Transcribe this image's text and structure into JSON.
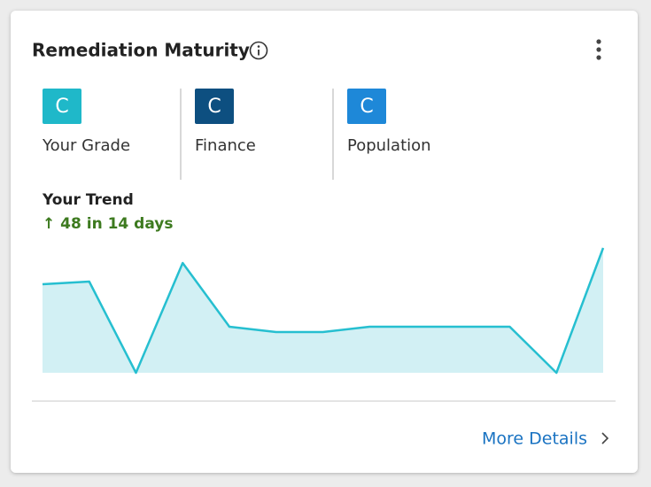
{
  "header": {
    "title": "Remediation Maturity"
  },
  "grades": [
    {
      "letter": "C",
      "label": "Your Grade",
      "color": "#1fb8c9"
    },
    {
      "letter": "C",
      "label": "Finance",
      "color": "#0d4f80"
    },
    {
      "letter": "C",
      "label": "Population",
      "color": "#1e88d8"
    }
  ],
  "trend": {
    "title": "Your Trend",
    "change": "↑ 48 in 14 days",
    "values": [
      100,
      103,
      0,
      124,
      52,
      46,
      46,
      52,
      52,
      52,
      52,
      0,
      141
    ],
    "line_color": "#26bfd0",
    "fill_color": "#d2f0f4"
  },
  "footer": {
    "link": "More Details"
  }
}
